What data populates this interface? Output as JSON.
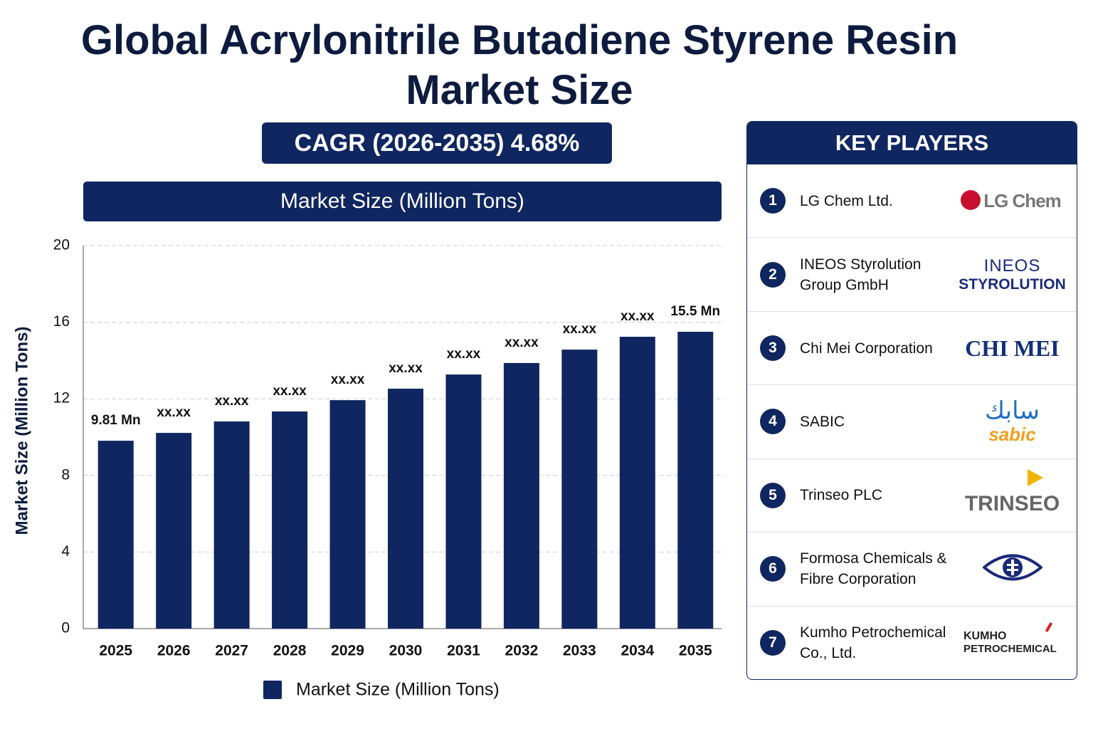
{
  "title": "Global Acrylonitrile Butadiene Styrene Resin Market Size",
  "cagr": "CAGR (2026-2035) 4.68%",
  "chart_data": {
    "type": "bar",
    "subtitle": "Market Size (Million Tons)",
    "y_label": "Market Size (Million Tons)",
    "categories": [
      "2025",
      "2026",
      "2027",
      "2028",
      "2029",
      "2030",
      "2031",
      "2032",
      "2033",
      "2034",
      "2035"
    ],
    "series": [
      {
        "name": "Market Size (Million Tons)",
        "color": "#0f2660",
        "values": [
          9.81,
          10.22,
          10.82,
          11.34,
          11.93,
          12.53,
          13.27,
          13.87,
          14.57,
          15.24,
          15.5
        ],
        "value_labels": [
          "9.81 Mn",
          "xx.xx",
          "xx.xx",
          "xx.xx",
          "xx.xx",
          "xx.xx",
          "xx.xx",
          "xx.xx",
          "xx.xx",
          "xx.xx",
          "15.5 Mn"
        ]
      }
    ],
    "ylim": [
      0,
      20
    ],
    "yticks": [
      0,
      4,
      8,
      12,
      16,
      20
    ],
    "grid": true
  },
  "key_players": {
    "title": "KEY PLAYERS",
    "items": [
      {
        "rank": "1",
        "name": "LG Chem Ltd.",
        "logo": [
          "LG Chem"
        ]
      },
      {
        "rank": "2",
        "name": "INEOS Styrolution Group GmbH",
        "logo": [
          "INEOS",
          "STYROLUTION"
        ]
      },
      {
        "rank": "3",
        "name": "Chi Mei Corporation",
        "logo": [
          "CHI MEI"
        ]
      },
      {
        "rank": "4",
        "name": "SABIC",
        "logo": [
          "سابك",
          "sabic"
        ]
      },
      {
        "rank": "5",
        "name": "Trinseo PLC",
        "logo": [
          "TRINSEO"
        ]
      },
      {
        "rank": "6",
        "name": "Formosa Chemicals & Fibre Corporation"
      },
      {
        "rank": "7",
        "name": "Kumho Petrochemical Co., Ltd.",
        "logo": [
          "KUMHO",
          "PETROCHEMICAL"
        ]
      }
    ]
  }
}
